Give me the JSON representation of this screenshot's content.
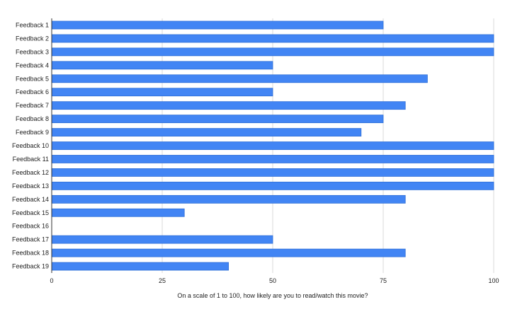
{
  "chart_data": {
    "type": "bar",
    "orientation": "horizontal",
    "title": "",
    "xlabel": "On a scale of 1 to 100, how likely are you to read/watch this movie?",
    "ylabel": "",
    "xlim": [
      0,
      100
    ],
    "x_ticks": [
      "0",
      "25",
      "50",
      "75",
      "100"
    ],
    "grid": true,
    "legend": "none",
    "bar_color": "#4285f4",
    "bar_edge_color": "#2f6fd6",
    "grid_color": "#d9d9d9",
    "categories": [
      "Feedback 1",
      "Feedback 2",
      "Feedback 3",
      "Feedback 4",
      "Feedback 5",
      "Feedback 6",
      "Feedback 7",
      "Feedback 8",
      "Feedback 9",
      "Feedback 10",
      "Feedback 11",
      "Feedback 12",
      "Feedback 13",
      "Feedback 14",
      "Feedback 15",
      "Feedback 16",
      "Feedback 17",
      "Feedback 18",
      "Feedback 19"
    ],
    "values": [
      75,
      100,
      100,
      50,
      85,
      50,
      80,
      75,
      70,
      100,
      100,
      100,
      100,
      80,
      30,
      0,
      50,
      80,
      40
    ]
  }
}
